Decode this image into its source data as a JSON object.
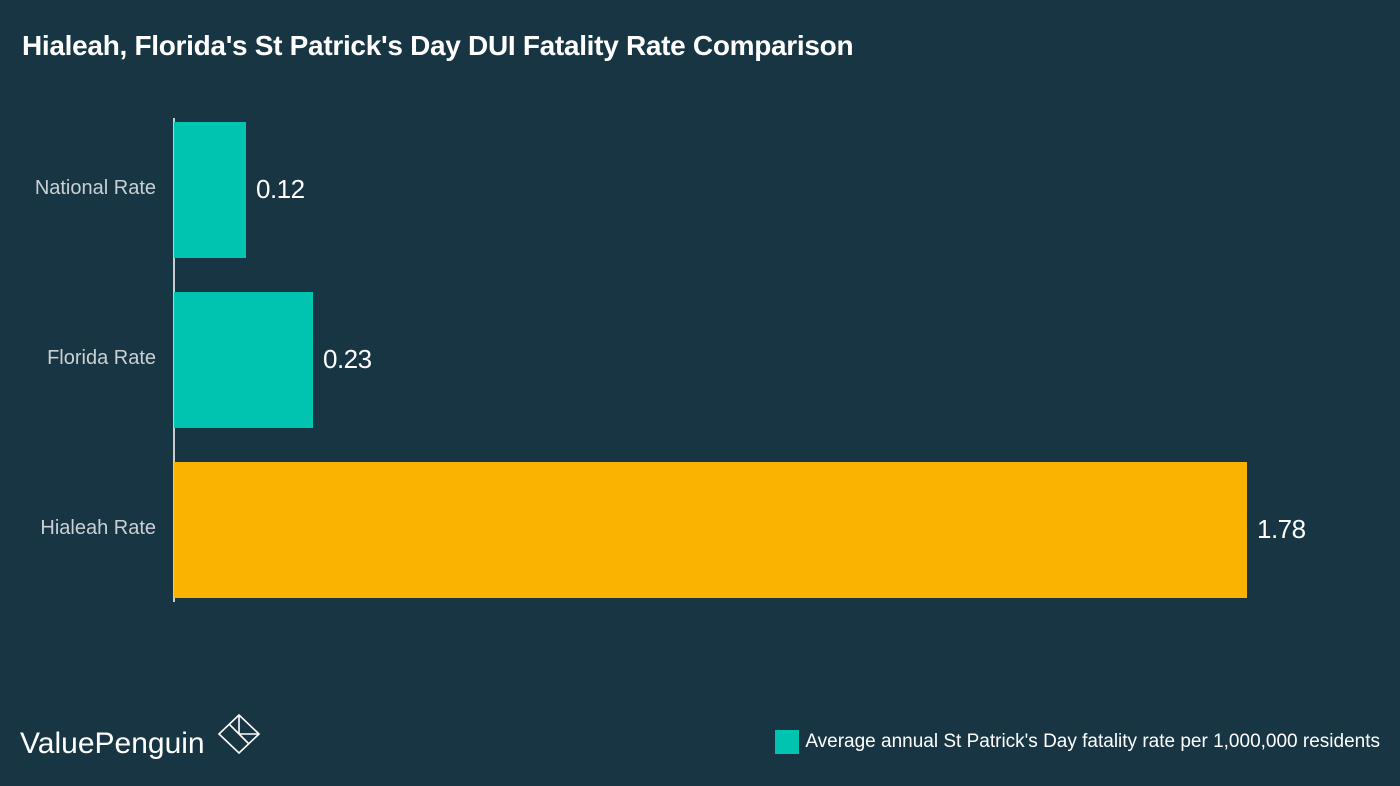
{
  "title": "Hialeah, Florida's St Patrick's Day DUI Fatality Rate Comparison",
  "brand": {
    "name": "ValuePenguin",
    "icon": "valuepenguin-logo-icon"
  },
  "legend": {
    "label": "Average annual St Patrick's Day fatality rate per 1,000,000 residents",
    "color": "#00c4b0"
  },
  "bars": [
    {
      "label": "National Rate",
      "value_label": "0.12",
      "value": 0.12,
      "color": "#00c4b0"
    },
    {
      "label": "Florida Rate",
      "value_label": "0.23",
      "value": 0.23,
      "color": "#00c4b0"
    },
    {
      "label": "Hialeah Rate",
      "value_label": "1.78",
      "value": 1.78,
      "color": "#f9b300"
    }
  ],
  "chart_data": {
    "type": "bar",
    "orientation": "horizontal",
    "title": "Hialeah, Florida's St Patrick's Day DUI Fatality Rate Comparison",
    "categories": [
      "National Rate",
      "Florida Rate",
      "Hialeah Rate"
    ],
    "values": [
      0.12,
      0.23,
      1.78
    ],
    "series": [
      {
        "name": "Average annual St Patrick's Day fatality rate per 1,000,000 residents",
        "values": [
          0.12,
          0.23,
          1.78
        ]
      }
    ],
    "colors": [
      "#00c4b0",
      "#00c4b0",
      "#f9b300"
    ],
    "xlabel": "",
    "ylabel": "",
    "xlim": [
      0,
      1.78
    ],
    "grid": false,
    "legend_position": "bottom-right"
  }
}
